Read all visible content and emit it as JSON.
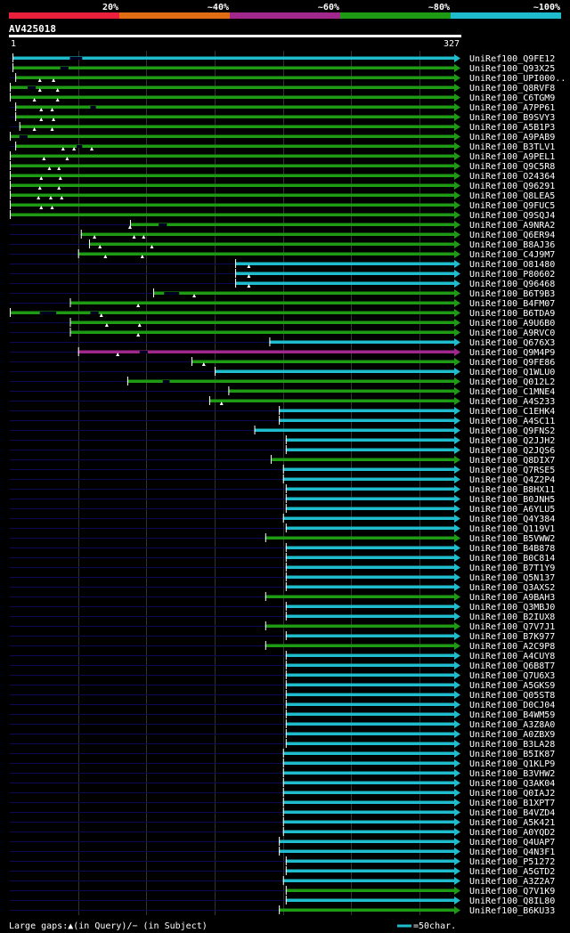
{
  "chart_data": {
    "type": "alignment-overview",
    "title": "AV425018",
    "query_length": 327,
    "axis": {
      "start_label": "1",
      "end_label": "327"
    },
    "identity_legend": [
      {
        "label": "20%",
        "color": "#e8203c"
      },
      {
        "label": "~40%",
        "color": "#e06c14"
      },
      {
        "label": "~60%",
        "color": "#a0288c"
      },
      {
        "label": "~80%",
        "color": "#1e9a14"
      },
      {
        "label": "~100%",
        "color": "#1ebccc"
      }
    ],
    "colors": {
      "20": "#e8203c",
      "40": "#e06c14",
      "60": "#a0288c",
      "80": "#1e9a14",
      "100": "#1ebccc",
      "line": "#0a0a55",
      "grid": "#333333"
    },
    "footer": {
      "gap_legend": "Large gaps:▲(in Query)/− (in Subject)",
      "scale_legend": "=50char."
    },
    "hits": [
      {
        "name": "UniRef100_Q9FE12",
        "start": 3,
        "end": 327,
        "id": 100,
        "q": [],
        "s": [
          {
            "a": 45,
            "b": 54
          }
        ]
      },
      {
        "name": "UniRef100_Q93X25",
        "start": 3,
        "end": 327,
        "id": 80,
        "q": [],
        "s": [
          {
            "a": 38,
            "b": 44
          }
        ]
      },
      {
        "name": "UniRef100_UPI000..",
        "start": 5,
        "end": 327,
        "id": 80,
        "q": [
          23,
          33
        ],
        "s": []
      },
      {
        "name": "UniRef100_Q8RVF8",
        "start": 1,
        "end": 327,
        "id": 80,
        "q": [
          23,
          36
        ],
        "s": [
          {
            "a": 14,
            "b": 20
          }
        ]
      },
      {
        "name": "UniRef100_C6TGM9",
        "start": 1,
        "end": 327,
        "id": 80,
        "q": [
          19,
          36
        ],
        "s": []
      },
      {
        "name": "UniRef100_A7PP61",
        "start": 5,
        "end": 327,
        "id": 80,
        "q": [
          24,
          32
        ],
        "s": [
          {
            "a": 60,
            "b": 64
          }
        ]
      },
      {
        "name": "UniRef100_B9SVY3",
        "start": 5,
        "end": 327,
        "id": 80,
        "q": [
          24,
          33
        ],
        "s": []
      },
      {
        "name": "UniRef100_A5B1P3",
        "start": 8,
        "end": 327,
        "id": 80,
        "q": [
          19,
          32
        ],
        "s": []
      },
      {
        "name": "UniRef100_A9PAB9",
        "start": 1,
        "end": 327,
        "id": 80,
        "q": [],
        "s": [
          {
            "a": 8,
            "b": 14
          }
        ]
      },
      {
        "name": "UniRef100_B3TLV1",
        "start": 5,
        "end": 327,
        "id": 80,
        "q": [
          40,
          48,
          61
        ],
        "s": [
          {
            "a": 50,
            "b": 54
          }
        ]
      },
      {
        "name": "UniRef100_A9PEL1",
        "start": 1,
        "end": 327,
        "id": 80,
        "q": [
          26,
          43
        ],
        "s": []
      },
      {
        "name": "UniRef100_Q9C5R8",
        "start": 1,
        "end": 327,
        "id": 80,
        "q": [
          30,
          37
        ],
        "s": []
      },
      {
        "name": "UniRef100_O24364",
        "start": 1,
        "end": 327,
        "id": 80,
        "q": [
          24,
          38
        ],
        "s": []
      },
      {
        "name": "UniRef100_Q96291",
        "start": 1,
        "end": 327,
        "id": 80,
        "q": [
          23,
          37
        ],
        "s": []
      },
      {
        "name": "UniRef100_Q8LEA5",
        "start": 1,
        "end": 327,
        "id": 80,
        "q": [
          22,
          31,
          39
        ],
        "s": []
      },
      {
        "name": "UniRef100_Q9FUC5",
        "start": 1,
        "end": 327,
        "id": 80,
        "q": [
          24,
          32
        ],
        "s": []
      },
      {
        "name": "UniRef100_Q9SQJ4",
        "start": 1,
        "end": 327,
        "id": 80,
        "q": [],
        "s": []
      },
      {
        "name": "UniRef100_A9NRA2",
        "start": 89,
        "end": 327,
        "id": 80,
        "q": [
          89
        ],
        "s": [
          {
            "a": 110,
            "b": 116
          }
        ]
      },
      {
        "name": "UniRef100_Q6ER94",
        "start": 53,
        "end": 327,
        "id": 80,
        "q": [
          63,
          92,
          99
        ],
        "s": []
      },
      {
        "name": "UniRef100_B8AJ36",
        "start": 59,
        "end": 327,
        "id": 80,
        "q": [
          67,
          105
        ],
        "s": []
      },
      {
        "name": "UniRef100_C4J9M7",
        "start": 51,
        "end": 327,
        "id": 80,
        "q": [
          71,
          98
        ],
        "s": []
      },
      {
        "name": "UniRef100_O81480",
        "start": 166,
        "end": 327,
        "id": 100,
        "q": [
          176
        ],
        "s": []
      },
      {
        "name": "UniRef100_P80602",
        "start": 166,
        "end": 327,
        "id": 100,
        "q": [
          176
        ],
        "s": []
      },
      {
        "name": "UniRef100_Q96468",
        "start": 166,
        "end": 327,
        "id": 100,
        "q": [
          176
        ],
        "s": []
      },
      {
        "name": "UniRef100_B6T9B3",
        "start": 106,
        "end": 327,
        "id": 80,
        "q": [
          136
        ],
        "s": [
          {
            "a": 114,
            "b": 125
          }
        ]
      },
      {
        "name": "UniRef100_B4FM07",
        "start": 45,
        "end": 327,
        "id": 80,
        "q": [
          95
        ],
        "s": []
      },
      {
        "name": "UniRef100_B6TDA9",
        "start": 1,
        "end": 327,
        "id": 80,
        "q": [
          68
        ],
        "s": [
          {
            "a": 23,
            "b": 35
          },
          {
            "a": 60,
            "b": 66
          }
        ]
      },
      {
        "name": "UniRef100_A9U6B0",
        "start": 45,
        "end": 327,
        "id": 80,
        "q": [
          72,
          96
        ],
        "s": []
      },
      {
        "name": "UniRef100_A9RVC0",
        "start": 45,
        "end": 327,
        "id": 80,
        "q": [
          95
        ],
        "s": []
      },
      {
        "name": "UniRef100_Q676X3",
        "start": 191,
        "end": 327,
        "id": 100,
        "q": [],
        "s": []
      },
      {
        "name": "UniRef100_Q9M4P9",
        "start": 51,
        "end": 327,
        "id": 60,
        "q": [
          80
        ],
        "s": [
          {
            "a": 96,
            "b": 102
          }
        ]
      },
      {
        "name": "UniRef100_Q9FE86",
        "start": 134,
        "end": 327,
        "id": 80,
        "q": [
          143
        ],
        "s": []
      },
      {
        "name": "UniRef100_Q1WLU0",
        "start": 151,
        "end": 327,
        "id": 100,
        "q": [],
        "s": []
      },
      {
        "name": "UniRef100_Q012L2",
        "start": 87,
        "end": 327,
        "id": 80,
        "q": [],
        "s": [
          {
            "a": 113,
            "b": 118
          }
        ]
      },
      {
        "name": "UniRef100_C1MNE4",
        "start": 161,
        "end": 327,
        "id": 80,
        "q": [],
        "s": []
      },
      {
        "name": "UniRef100_A4S233",
        "start": 147,
        "end": 327,
        "id": 80,
        "q": [
          156
        ],
        "s": []
      },
      {
        "name": "UniRef100_C1EHK4",
        "start": 198,
        "end": 327,
        "id": 100,
        "q": [],
        "s": []
      },
      {
        "name": "UniRef100_A4SC11",
        "start": 198,
        "end": 327,
        "id": 100,
        "q": [],
        "s": []
      },
      {
        "name": "UniRef100_Q9FNS2",
        "start": 180,
        "end": 327,
        "id": 100,
        "q": [],
        "s": []
      },
      {
        "name": "UniRef100_Q2JJH2",
        "start": 203,
        "end": 327,
        "id": 100,
        "q": [],
        "s": []
      },
      {
        "name": "UniRef100_Q2JQS6",
        "start": 203,
        "end": 327,
        "id": 100,
        "q": [],
        "s": []
      },
      {
        "name": "UniRef100_Q8DIX7",
        "start": 192,
        "end": 327,
        "id": 80,
        "q": [],
        "s": []
      },
      {
        "name": "UniRef100_Q7RSE5",
        "start": 201,
        "end": 327,
        "id": 100,
        "q": [],
        "s": []
      },
      {
        "name": "UniRef100_Q4Z2P4",
        "start": 201,
        "end": 327,
        "id": 100,
        "q": [],
        "s": []
      },
      {
        "name": "UniRef100_B8HX11",
        "start": 203,
        "end": 327,
        "id": 100,
        "q": [],
        "s": []
      },
      {
        "name": "UniRef100_B0JNH5",
        "start": 203,
        "end": 327,
        "id": 100,
        "q": [],
        "s": []
      },
      {
        "name": "UniRef100_A6YLU5",
        "start": 203,
        "end": 327,
        "id": 100,
        "q": [],
        "s": []
      },
      {
        "name": "UniRef100_Q4Y384",
        "start": 201,
        "end": 327,
        "id": 100,
        "q": [],
        "s": []
      },
      {
        "name": "UniRef100_Q119V1",
        "start": 203,
        "end": 327,
        "id": 100,
        "q": [],
        "s": []
      },
      {
        "name": "UniRef100_B5VWW2",
        "start": 188,
        "end": 327,
        "id": 80,
        "q": [],
        "s": []
      },
      {
        "name": "UniRef100_B4B878",
        "start": 203,
        "end": 327,
        "id": 100,
        "q": [],
        "s": []
      },
      {
        "name": "UniRef100_B0C814",
        "start": 203,
        "end": 327,
        "id": 100,
        "q": [],
        "s": []
      },
      {
        "name": "UniRef100_B7T1Y9",
        "start": 203,
        "end": 327,
        "id": 100,
        "q": [],
        "s": []
      },
      {
        "name": "UniRef100_Q5N137",
        "start": 203,
        "end": 327,
        "id": 100,
        "q": [],
        "s": []
      },
      {
        "name": "UniRef100_Q3AXS2",
        "start": 203,
        "end": 327,
        "id": 100,
        "q": [],
        "s": []
      },
      {
        "name": "UniRef100_A9BAH3",
        "start": 188,
        "end": 327,
        "id": 80,
        "q": [],
        "s": []
      },
      {
        "name": "UniRef100_Q3MBJ0",
        "start": 203,
        "end": 327,
        "id": 100,
        "q": [],
        "s": []
      },
      {
        "name": "UniRef100_B2IUX8",
        "start": 203,
        "end": 327,
        "id": 100,
        "q": [],
        "s": []
      },
      {
        "name": "UniRef100_Q7V7J1",
        "start": 188,
        "end": 327,
        "id": 80,
        "q": [],
        "s": []
      },
      {
        "name": "UniRef100_B7K977",
        "start": 203,
        "end": 327,
        "id": 100,
        "q": [],
        "s": []
      },
      {
        "name": "UniRef100_A2C9P8",
        "start": 188,
        "end": 327,
        "id": 80,
        "q": [],
        "s": []
      },
      {
        "name": "UniRef100_A4CUY8",
        "start": 203,
        "end": 327,
        "id": 100,
        "q": [],
        "s": []
      },
      {
        "name": "UniRef100_Q6B8T7",
        "start": 203,
        "end": 327,
        "id": 100,
        "q": [],
        "s": []
      },
      {
        "name": "UniRef100_Q7U6X3",
        "start": 203,
        "end": 327,
        "id": 100,
        "q": [],
        "s": []
      },
      {
        "name": "UniRef100_A5GKS9",
        "start": 203,
        "end": 327,
        "id": 100,
        "q": [],
        "s": []
      },
      {
        "name": "UniRef100_Q05ST8",
        "start": 203,
        "end": 327,
        "id": 100,
        "q": [],
        "s": []
      },
      {
        "name": "UniRef100_D0CJ04",
        "start": 203,
        "end": 327,
        "id": 100,
        "q": [],
        "s": []
      },
      {
        "name": "UniRef100_B4WM59",
        "start": 203,
        "end": 327,
        "id": 100,
        "q": [],
        "s": []
      },
      {
        "name": "UniRef100_A3Z8A0",
        "start": 203,
        "end": 327,
        "id": 100,
        "q": [],
        "s": []
      },
      {
        "name": "UniRef100_A0ZBX9",
        "start": 203,
        "end": 327,
        "id": 100,
        "q": [],
        "s": []
      },
      {
        "name": "UniRef100_B3LA28",
        "start": 203,
        "end": 327,
        "id": 100,
        "q": [],
        "s": []
      },
      {
        "name": "UniRef100_B5IK87",
        "start": 201,
        "end": 327,
        "id": 100,
        "q": [],
        "s": []
      },
      {
        "name": "UniRef100_Q1KLP9",
        "start": 201,
        "end": 327,
        "id": 100,
        "q": [],
        "s": []
      },
      {
        "name": "UniRef100_B3VHW2",
        "start": 201,
        "end": 327,
        "id": 100,
        "q": [],
        "s": []
      },
      {
        "name": "UniRef100_Q3AK04",
        "start": 201,
        "end": 327,
        "id": 100,
        "q": [],
        "s": []
      },
      {
        "name": "UniRef100_Q0IAJ2",
        "start": 201,
        "end": 327,
        "id": 100,
        "q": [],
        "s": []
      },
      {
        "name": "UniRef100_B1XPT7",
        "start": 201,
        "end": 327,
        "id": 100,
        "q": [],
        "s": []
      },
      {
        "name": "UniRef100_B4VZD4",
        "start": 201,
        "end": 327,
        "id": 100,
        "q": [],
        "s": []
      },
      {
        "name": "UniRef100_A5K421",
        "start": 201,
        "end": 327,
        "id": 100,
        "q": [],
        "s": []
      },
      {
        "name": "UniRef100_A0YQD2",
        "start": 201,
        "end": 327,
        "id": 100,
        "q": [],
        "s": []
      },
      {
        "name": "UniRef100_Q4UAP7",
        "start": 198,
        "end": 327,
        "id": 100,
        "q": [],
        "s": []
      },
      {
        "name": "UniRef100_Q4N3F1",
        "start": 198,
        "end": 327,
        "id": 100,
        "q": [],
        "s": []
      },
      {
        "name": "UniRef100_P51272",
        "start": 203,
        "end": 327,
        "id": 100,
        "q": [],
        "s": []
      },
      {
        "name": "UniRef100_A5GTD2",
        "start": 203,
        "end": 327,
        "id": 100,
        "q": [],
        "s": []
      },
      {
        "name": "UniRef100_A3Z2A7",
        "start": 201,
        "end": 327,
        "id": 100,
        "q": [],
        "s": []
      },
      {
        "name": "UniRef100_Q7V1K9",
        "start": 203,
        "end": 327,
        "id": 80,
        "q": [],
        "s": []
      },
      {
        "name": "UniRef100_Q8IL80",
        "start": 203,
        "end": 327,
        "id": 100,
        "q": [],
        "s": []
      },
      {
        "name": "UniRef100_B6KU33",
        "start": 198,
        "end": 327,
        "id": 80,
        "q": [],
        "s": []
      }
    ]
  }
}
